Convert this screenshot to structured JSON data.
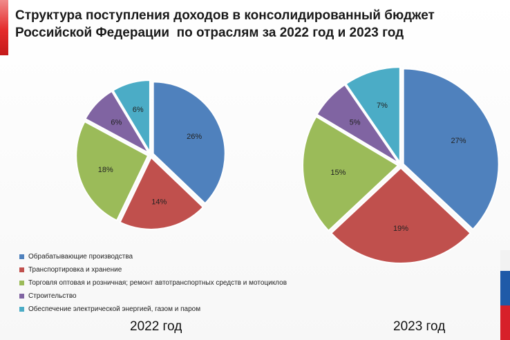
{
  "title": {
    "line1": "Структура поступления доходов в консолидированный бюджет",
    "line2": "Российской Федерации  по отраслям за 2022 год и 2023 год"
  },
  "colors": {
    "manufacturing": "#4f81bd",
    "transport": "#c0504d",
    "trade": "#9bbb59",
    "construction": "#8064a2",
    "energy": "#4bacc6",
    "accent_red": "#d7202a",
    "accent_blue": "#1f5aa8"
  },
  "legend": [
    "Обрабатывающие производства",
    "Транспортировка и хранение",
    "Торговля оптовая и розничная; ремонт автотранспортных средств и мотоциклов",
    "Строительство",
    "Обеспечение электрической энергией, газом и паром"
  ],
  "chart_data": [
    {
      "type": "pie",
      "title": "2022 год",
      "categories": [
        "Обрабатывающие производства",
        "Транспортировка и хранение",
        "Торговля оптовая и розничная; ремонт автотранспортных средств и мотоциклов",
        "Строительство",
        "Обеспечение электрической энергией, газом и паром"
      ],
      "values": [
        26,
        14,
        18,
        6,
        6
      ],
      "labels": [
        "26%",
        "14%",
        "18%",
        "6%",
        "6%"
      ]
    },
    {
      "type": "pie",
      "title": "2023 год",
      "categories": [
        "Обрабатывающие производства",
        "Транспортировка и хранение",
        "Торговля оптовая и розничная; ремонт автотранспортных средств и мотоциклов",
        "Строительство",
        "Обеспечение электрической энергией, газом и паром"
      ],
      "values": [
        27,
        19,
        15,
        5,
        7
      ],
      "labels": [
        "27%",
        "19%",
        "15%",
        "5%",
        "7%"
      ]
    }
  ]
}
